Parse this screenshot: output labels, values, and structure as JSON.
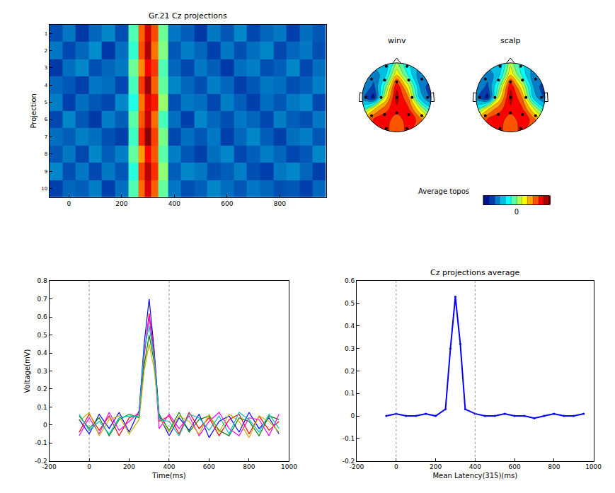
{
  "chart_data": [
    {
      "type": "heatmap",
      "title": "Gr.21 Cz projections",
      "y_label": "Projection",
      "x": [
        -50,
        0,
        50,
        100,
        150,
        200,
        250,
        275,
        300,
        325,
        350,
        400,
        450,
        500,
        550,
        600,
        650,
        700,
        750,
        800,
        850,
        900,
        950
      ],
      "rows": [
        1,
        2,
        3,
        4,
        5,
        6,
        7,
        8,
        9,
        10
      ],
      "z": [
        [
          0.15,
          0.2,
          0.12,
          0.18,
          0.22,
          0.15,
          0.45,
          0.78,
          0.92,
          0.8,
          0.48,
          0.2,
          0.17,
          0.12,
          0.2,
          0.16,
          0.22,
          0.14,
          0.18,
          0.2,
          0.13,
          0.19,
          0.16
        ],
        [
          0.2,
          0.14,
          0.18,
          0.23,
          0.12,
          0.19,
          0.42,
          0.8,
          0.95,
          0.76,
          0.5,
          0.16,
          0.21,
          0.18,
          0.13,
          0.2,
          0.15,
          0.19,
          0.22,
          0.14,
          0.18,
          0.2,
          0.15
        ],
        [
          0.12,
          0.19,
          0.22,
          0.15,
          0.18,
          0.2,
          0.48,
          0.74,
          0.88,
          0.82,
          0.45,
          0.18,
          0.14,
          0.2,
          0.17,
          0.12,
          0.19,
          0.21,
          0.15,
          0.17,
          0.22,
          0.14,
          0.19
        ],
        [
          0.18,
          0.16,
          0.13,
          0.2,
          0.19,
          0.14,
          0.44,
          0.82,
          0.97,
          0.78,
          0.47,
          0.22,
          0.18,
          0.15,
          0.21,
          0.18,
          0.13,
          0.16,
          0.2,
          0.19,
          0.15,
          0.17,
          0.21
        ],
        [
          0.21,
          0.13,
          0.19,
          0.16,
          0.14,
          0.22,
          0.4,
          0.76,
          0.9,
          0.85,
          0.52,
          0.15,
          0.2,
          0.19,
          0.14,
          0.21,
          0.17,
          0.13,
          0.19,
          0.16,
          0.2,
          0.22,
          0.14
        ],
        [
          0.14,
          0.22,
          0.16,
          0.12,
          0.21,
          0.17,
          0.46,
          0.79,
          0.93,
          0.77,
          0.44,
          0.19,
          0.13,
          0.22,
          0.18,
          0.15,
          0.2,
          0.18,
          0.14,
          0.21,
          0.17,
          0.15,
          0.2
        ],
        [
          0.19,
          0.17,
          0.21,
          0.19,
          0.15,
          0.13,
          0.43,
          0.84,
          0.99,
          0.81,
          0.49,
          0.14,
          0.19,
          0.16,
          0.2,
          0.13,
          0.18,
          0.22,
          0.17,
          0.13,
          0.19,
          0.21,
          0.16
        ],
        [
          0.16,
          0.2,
          0.14,
          0.22,
          0.17,
          0.21,
          0.47,
          0.72,
          0.87,
          0.79,
          0.46,
          0.21,
          0.16,
          0.13,
          0.19,
          0.22,
          0.14,
          0.17,
          0.21,
          0.18,
          0.14,
          0.16,
          0.22
        ],
        [
          0.22,
          0.15,
          0.2,
          0.14,
          0.2,
          0.16,
          0.41,
          0.81,
          0.94,
          0.83,
          0.51,
          0.17,
          0.22,
          0.2,
          0.15,
          0.17,
          0.21,
          0.15,
          0.13,
          0.2,
          0.22,
          0.18,
          0.13
        ],
        [
          0.13,
          0.18,
          0.17,
          0.21,
          0.13,
          0.19,
          0.45,
          0.77,
          0.91,
          0.78,
          0.47,
          0.2,
          0.15,
          0.17,
          0.22,
          0.19,
          0.16,
          0.2,
          0.18,
          0.15,
          0.16,
          0.13,
          0.18
        ]
      ],
      "clim": [
        0,
        1
      ],
      "xlim": [
        -75,
        975
      ],
      "xticks": [
        0,
        200,
        400,
        600,
        800
      ],
      "ylim": [
        0.5,
        10.5
      ],
      "yticks": [
        1,
        2,
        3,
        4,
        5,
        6,
        7,
        8,
        9,
        10
      ]
    },
    {
      "type": "topoplot",
      "title": "Average topos",
      "grid_x": [
        -1,
        -0.667,
        -0.333,
        0,
        0.333,
        0.667,
        1
      ],
      "grid_y": [
        -1,
        -0.667,
        -0.333,
        0,
        0.333,
        0.667,
        1
      ],
      "maps": [
        {
          "title": "winv",
          "grid": [
            [
              0.5,
              0.6,
              0.7,
              0.6,
              0.7,
              0.5,
              0.3
            ],
            [
              0.4,
              0.7,
              0.8,
              0.5,
              0.8,
              0.6,
              0.2
            ],
            [
              -0.2,
              0.3,
              0.6,
              0.8,
              0.7,
              0.2,
              -0.3
            ],
            [
              -0.6,
              -0.9,
              0.2,
              0.9,
              0.5,
              -0.4,
              -0.7
            ],
            [
              -0.5,
              -0.7,
              -0.1,
              0.8,
              0.2,
              -0.5,
              -0.8
            ],
            [
              -0.3,
              -0.6,
              -0.4,
              0.3,
              -0.2,
              -0.6,
              -0.5
            ],
            [
              -0.2,
              -0.4,
              -0.5,
              0.0,
              -0.3,
              -0.5,
              -0.4
            ]
          ]
        },
        {
          "title": "scalp",
          "grid": [
            [
              0.5,
              0.6,
              0.7,
              0.6,
              0.7,
              0.5,
              0.3
            ],
            [
              0.4,
              0.7,
              0.8,
              0.5,
              0.8,
              0.6,
              0.2
            ],
            [
              -0.2,
              0.3,
              0.6,
              0.8,
              0.7,
              0.2,
              -0.3
            ],
            [
              -0.6,
              -0.9,
              0.2,
              0.9,
              0.5,
              -0.4,
              -0.7
            ],
            [
              -0.5,
              -0.7,
              -0.1,
              0.8,
              0.2,
              -0.5,
              -0.8
            ],
            [
              -0.3,
              -0.6,
              -0.4,
              0.3,
              -0.2,
              -0.6,
              -0.5
            ],
            [
              -0.2,
              -0.4,
              -0.5,
              0.1,
              -0.3,
              -0.5,
              -0.4
            ]
          ]
        }
      ],
      "electrodes": {
        "x": [
          -0.3,
          0.3,
          -0.73,
          -0.35,
          0,
          0.35,
          0.73,
          -0.9,
          -0.45,
          0,
          0.45,
          0.9,
          -0.73,
          -0.35,
          0,
          0.35,
          0.73,
          -0.3,
          0.3
        ],
        "y": [
          0.9,
          0.9,
          0.53,
          0.5,
          0.45,
          0.5,
          0.53,
          0,
          0,
          0,
          0,
          0,
          -0.53,
          -0.5,
          -0.45,
          -0.5,
          -0.53,
          -0.9,
          -0.9
        ]
      },
      "clim": [
        -1,
        1
      ],
      "cticks": [
        0
      ]
    },
    {
      "type": "line",
      "x_label": "Time(ms)",
      "y_label": "Voltage(mV)",
      "x": [
        -50,
        0,
        50,
        100,
        150,
        200,
        250,
        275,
        300,
        325,
        350,
        400,
        450,
        500,
        550,
        600,
        650,
        700,
        750,
        800,
        850,
        900,
        950
      ],
      "series": [
        {
          "color": "#0000ff",
          "values": [
            0.03,
            -0.05,
            0.06,
            -0.02,
            0.07,
            -0.04,
            0.08,
            0.45,
            0.7,
            0.42,
            0.05,
            -0.06,
            0.04,
            -0.03,
            0.06,
            -0.07,
            0.02,
            0.05,
            -0.04,
            0.07,
            -0.02,
            0.04,
            -0.05
          ]
        },
        {
          "color": "#ff0000",
          "values": [
            -0.04,
            0.06,
            -0.03,
            0.05,
            -0.06,
            0.04,
            0.06,
            0.38,
            0.62,
            0.4,
            0.02,
            0.05,
            -0.05,
            0.07,
            -0.02,
            0.04,
            -0.06,
            0.03,
            0.06,
            -0.05,
            0.05,
            -0.03,
            0.02
          ]
        },
        {
          "color": "#008000",
          "values": [
            0.05,
            -0.02,
            0.04,
            -0.06,
            0.03,
            0.06,
            0.04,
            0.33,
            0.5,
            0.35,
            0.06,
            -0.03,
            0.07,
            -0.04,
            0.03,
            0.05,
            -0.03,
            -0.06,
            0.04,
            0.02,
            -0.06,
            0.05,
            0.03
          ]
        },
        {
          "color": "#ff00ff",
          "values": [
            -0.06,
            0.04,
            -0.05,
            0.07,
            -0.03,
            0.02,
            0.07,
            0.4,
            0.6,
            0.37,
            -0.02,
            0.06,
            -0.02,
            0.05,
            -0.06,
            0.02,
            0.07,
            -0.02,
            -0.06,
            0.04,
            0.03,
            -0.06,
            0.06
          ]
        },
        {
          "color": "#c8b400",
          "values": [
            0.02,
            0.07,
            -0.06,
            0.03,
            0.05,
            -0.05,
            0.03,
            0.3,
            0.45,
            0.31,
            0.04,
            -0.04,
            0.05,
            0.02,
            -0.05,
            0.06,
            -0.04,
            0.06,
            0.02,
            -0.07,
            0.05,
            0.02,
            -0.04
          ]
        },
        {
          "color": "#00bfbf",
          "values": [
            0.06,
            -0.03,
            0.02,
            -0.05,
            0.04,
            0.05,
            0.05,
            0.42,
            0.55,
            0.38,
            0.03,
            0.02,
            -0.06,
            0.06,
            0.04,
            -0.03,
            0.05,
            -0.05,
            0.07,
            0.03,
            -0.04,
            0.06,
            -0.02
          ]
        }
      ],
      "vlines": [
        0,
        400
      ],
      "xlim": [
        -200,
        1000
      ],
      "xticks": [
        -200,
        0,
        200,
        400,
        600,
        800,
        1000
      ],
      "ylim": [
        -0.2,
        0.8
      ],
      "yticks": [
        -0.2,
        -0.1,
        0,
        0.1,
        0.2,
        0.3,
        0.4,
        0.5,
        0.6,
        0.7,
        0.8
      ]
    },
    {
      "type": "line",
      "title": "Cz projections average",
      "x_label": "Mean Latency(315)(ms)",
      "x": [
        -50,
        0,
        50,
        100,
        150,
        200,
        250,
        275,
        300,
        325,
        350,
        400,
        450,
        500,
        550,
        600,
        650,
        700,
        750,
        800,
        850,
        900,
        950
      ],
      "series": [
        {
          "color": "#0000ff",
          "marker": "dot",
          "values": [
            0,
            0.01,
            0,
            0,
            0.01,
            0,
            0.03,
            0.3,
            0.53,
            0.32,
            0.03,
            0.01,
            0,
            0,
            0.01,
            0,
            0,
            -0.01,
            0,
            0.01,
            0,
            0,
            0.01
          ]
        }
      ],
      "vlines": [
        0,
        400
      ],
      "xlim": [
        -200,
        1000
      ],
      "xticks": [
        -200,
        0,
        200,
        400,
        600,
        800,
        1000
      ],
      "ylim": [
        -0.2,
        0.6
      ],
      "yticks": [
        -0.2,
        -0.1,
        0,
        0.1,
        0.2,
        0.3,
        0.4,
        0.5,
        0.6
      ]
    }
  ]
}
